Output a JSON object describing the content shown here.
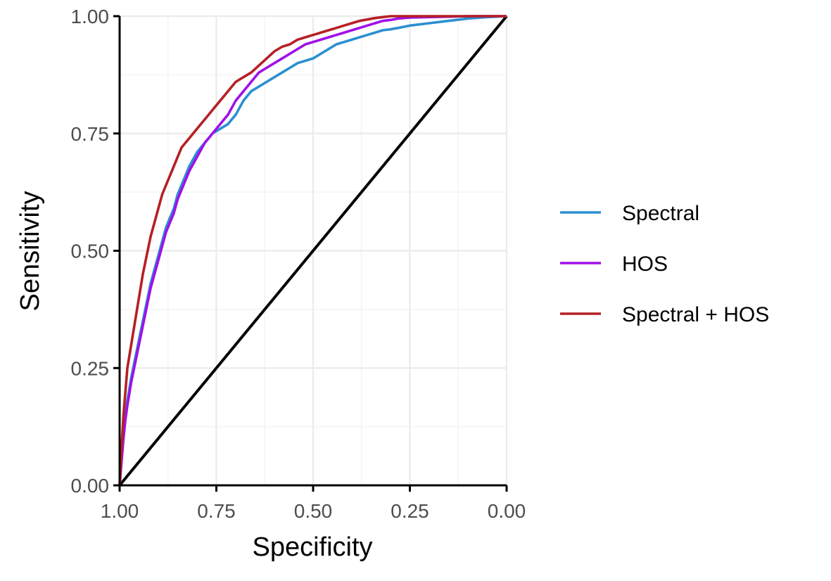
{
  "chart_data": {
    "type": "line",
    "title": "",
    "xlabel": "Specificity",
    "ylabel": "Sensitivity",
    "xlim": [
      1.0,
      0.0
    ],
    "ylim": [
      0.0,
      1.0
    ],
    "x_reversed": true,
    "x_ticks": [
      1.0,
      0.75,
      0.5,
      0.25,
      0.0
    ],
    "x_tick_labels": [
      "1.00",
      "0.75",
      "0.50",
      "0.25",
      "0.00"
    ],
    "y_ticks": [
      0.0,
      0.25,
      0.5,
      0.75,
      1.0
    ],
    "y_tick_labels": [
      "0.00",
      "0.25",
      "0.50",
      "0.75",
      "1.00"
    ],
    "grid": true,
    "legend_position": "right",
    "reference_line": {
      "from": [
        1.0,
        0.0
      ],
      "to": [
        0.0,
        1.0
      ],
      "color": "#000000"
    },
    "series": [
      {
        "name": "Spectral",
        "color": "#2b8fd1",
        "x": [
          1.0,
          0.995,
          0.99,
          0.985,
          0.98,
          0.97,
          0.96,
          0.95,
          0.94,
          0.93,
          0.92,
          0.91,
          0.9,
          0.89,
          0.88,
          0.87,
          0.86,
          0.85,
          0.84,
          0.83,
          0.82,
          0.8,
          0.78,
          0.76,
          0.74,
          0.72,
          0.7,
          0.68,
          0.66,
          0.64,
          0.62,
          0.6,
          0.58,
          0.56,
          0.54,
          0.52,
          0.5,
          0.48,
          0.46,
          0.44,
          0.42,
          0.4,
          0.38,
          0.36,
          0.34,
          0.32,
          0.3,
          0.28,
          0.25,
          0.2,
          0.15,
          0.1,
          0.05,
          0.0
        ],
        "y": [
          0.0,
          0.06,
          0.11,
          0.15,
          0.18,
          0.23,
          0.27,
          0.31,
          0.35,
          0.39,
          0.43,
          0.46,
          0.49,
          0.52,
          0.55,
          0.57,
          0.59,
          0.62,
          0.64,
          0.66,
          0.68,
          0.71,
          0.73,
          0.75,
          0.76,
          0.77,
          0.79,
          0.82,
          0.84,
          0.85,
          0.86,
          0.87,
          0.88,
          0.89,
          0.9,
          0.905,
          0.91,
          0.92,
          0.93,
          0.94,
          0.945,
          0.95,
          0.955,
          0.96,
          0.965,
          0.97,
          0.972,
          0.975,
          0.98,
          0.985,
          0.99,
          0.995,
          0.998,
          1.0
        ]
      },
      {
        "name": "HOS",
        "color": "#a010e8",
        "x": [
          1.0,
          0.995,
          0.99,
          0.985,
          0.98,
          0.97,
          0.96,
          0.95,
          0.94,
          0.93,
          0.92,
          0.91,
          0.9,
          0.89,
          0.88,
          0.87,
          0.86,
          0.85,
          0.84,
          0.83,
          0.82,
          0.8,
          0.78,
          0.76,
          0.74,
          0.72,
          0.7,
          0.68,
          0.66,
          0.64,
          0.62,
          0.6,
          0.58,
          0.56,
          0.54,
          0.52,
          0.5,
          0.48,
          0.46,
          0.44,
          0.42,
          0.4,
          0.38,
          0.36,
          0.34,
          0.32,
          0.3,
          0.28,
          0.25,
          0.2,
          0.15,
          0.1,
          0.05,
          0.0
        ],
        "y": [
          0.0,
          0.05,
          0.1,
          0.14,
          0.17,
          0.22,
          0.26,
          0.3,
          0.34,
          0.38,
          0.42,
          0.45,
          0.48,
          0.51,
          0.54,
          0.56,
          0.58,
          0.61,
          0.63,
          0.65,
          0.67,
          0.7,
          0.73,
          0.75,
          0.77,
          0.79,
          0.82,
          0.84,
          0.86,
          0.88,
          0.89,
          0.9,
          0.91,
          0.92,
          0.93,
          0.94,
          0.945,
          0.95,
          0.955,
          0.96,
          0.965,
          0.97,
          0.975,
          0.98,
          0.985,
          0.99,
          0.992,
          0.995,
          0.997,
          0.998,
          0.999,
          1.0,
          1.0,
          1.0
        ]
      },
      {
        "name": "Spectral + HOS",
        "color": "#b52025",
        "x": [
          1.0,
          0.995,
          0.99,
          0.985,
          0.98,
          0.97,
          0.96,
          0.95,
          0.94,
          0.93,
          0.92,
          0.91,
          0.9,
          0.89,
          0.88,
          0.87,
          0.86,
          0.85,
          0.84,
          0.83,
          0.82,
          0.8,
          0.78,
          0.76,
          0.74,
          0.72,
          0.7,
          0.68,
          0.66,
          0.64,
          0.62,
          0.6,
          0.58,
          0.56,
          0.54,
          0.52,
          0.5,
          0.48,
          0.46,
          0.44,
          0.42,
          0.4,
          0.38,
          0.36,
          0.34,
          0.32,
          0.3,
          0.28,
          0.25,
          0.2,
          0.15,
          0.1,
          0.05,
          0.0
        ],
        "y": [
          0.0,
          0.08,
          0.15,
          0.2,
          0.25,
          0.3,
          0.35,
          0.4,
          0.45,
          0.49,
          0.53,
          0.56,
          0.59,
          0.62,
          0.64,
          0.66,
          0.68,
          0.7,
          0.72,
          0.73,
          0.74,
          0.76,
          0.78,
          0.8,
          0.82,
          0.84,
          0.86,
          0.87,
          0.88,
          0.895,
          0.91,
          0.925,
          0.935,
          0.94,
          0.95,
          0.955,
          0.96,
          0.965,
          0.97,
          0.975,
          0.98,
          0.985,
          0.99,
          0.993,
          0.996,
          0.998,
          1.0,
          1.0,
          1.0,
          1.0,
          1.0,
          1.0,
          1.0,
          1.0
        ]
      }
    ]
  }
}
